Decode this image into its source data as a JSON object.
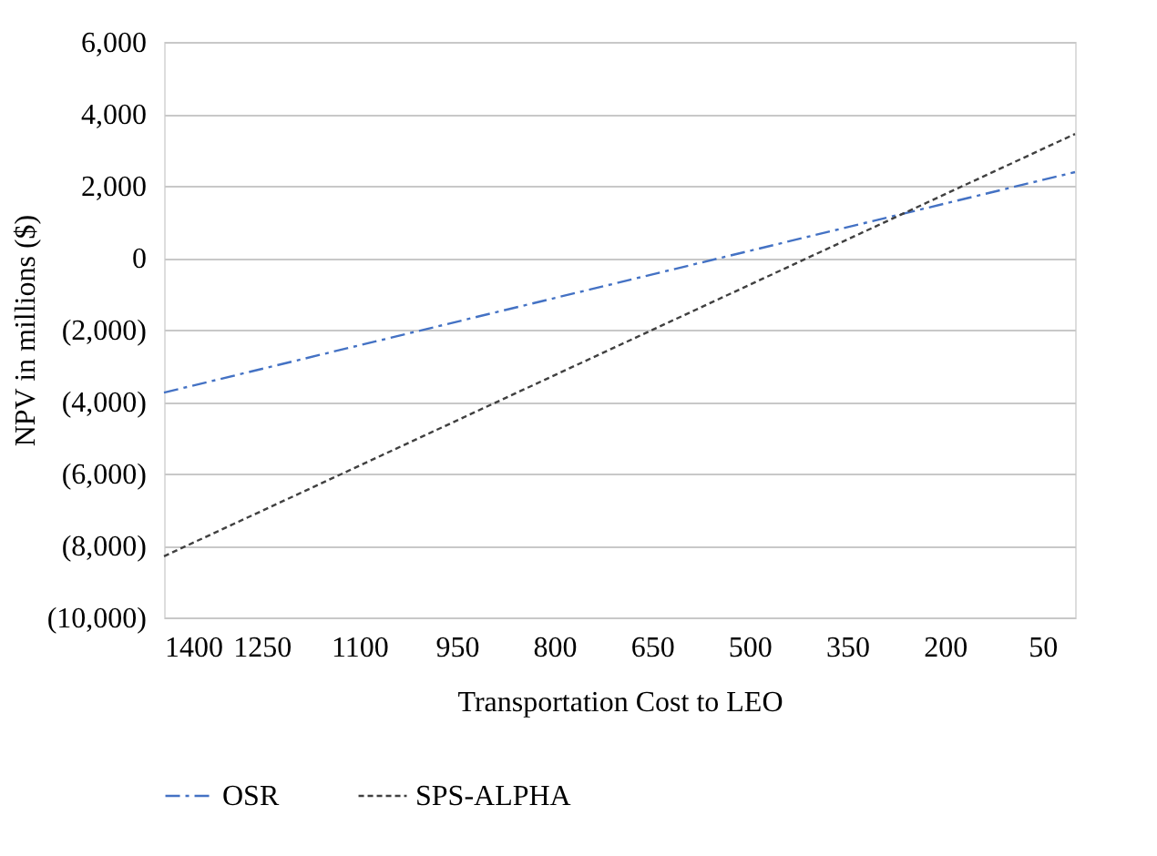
{
  "chart_data": {
    "type": "line",
    "xlabel": "Transportation Cost to LEO",
    "ylabel": "NPV in millions ($)",
    "x": [
      1400,
      0
    ],
    "series": [
      {
        "name": "OSR",
        "color": "#4472c4",
        "line_style": "dashed",
        "values": [
          -3750,
          2380
        ]
      },
      {
        "name": "SPS-ALPHA",
        "color": "#404040",
        "line_style": "dotted",
        "values": [
          -8300,
          3440
        ]
      }
    ],
    "xlim": [
      1400,
      0
    ],
    "xticks": [
      1400,
      1250,
      1100,
      950,
      800,
      650,
      500,
      350,
      200,
      50
    ],
    "ylim": [
      -10000,
      6000
    ],
    "yticks": [
      {
        "value": -10000,
        "label": "(10,000)"
      },
      {
        "value": -8000,
        "label": "(8,000)"
      },
      {
        "value": -6000,
        "label": "(6,000)"
      },
      {
        "value": -4000,
        "label": "(4,000)"
      },
      {
        "value": -2000,
        "label": "(2,000)"
      },
      0,
      {
        "value": 2000,
        "label": "2,000"
      },
      {
        "value": 4000,
        "label": "4,000"
      },
      {
        "value": 6000,
        "label": "6,000"
      }
    ],
    "grid": "y",
    "legend": "bottom",
    "marker": "none"
  }
}
